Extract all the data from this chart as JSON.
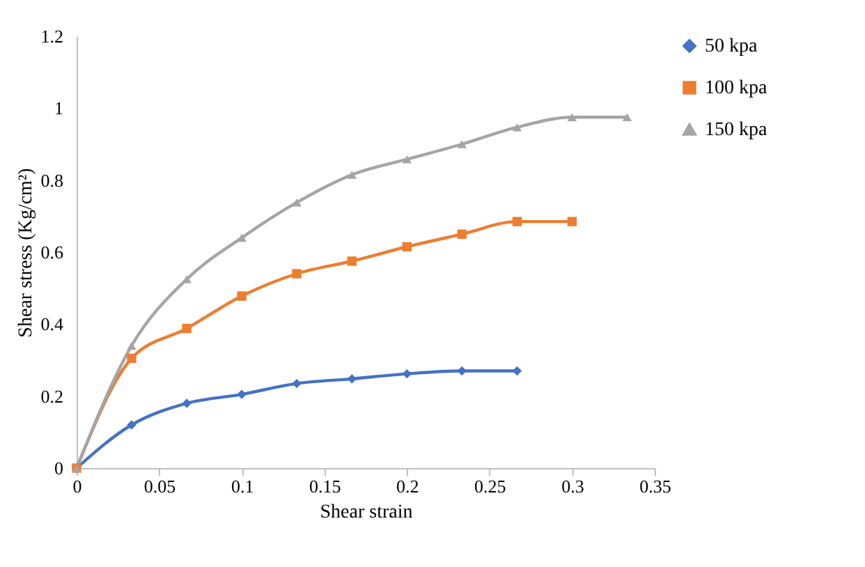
{
  "chart_data": {
    "type": "line",
    "xlabel": "Shear strain",
    "ylabel": "Shear stress (Kg/cm²)",
    "xlim": [
      0,
      0.35
    ],
    "xticks": [
      0,
      0.05,
      0.1,
      0.15,
      0.2,
      0.25,
      0.3,
      0.35
    ],
    "ylim": [
      0,
      1.2
    ],
    "yticks": [
      0,
      0.2,
      0.4,
      0.6,
      0.8,
      1,
      1.2
    ],
    "grid": false,
    "legend": "right",
    "line_style": "solid",
    "series": [
      {
        "name": "50 kpa",
        "color": "#4472c4",
        "marker": "diamond",
        "x": [
          0,
          0.0333,
          0.0667,
          0.1,
          0.1333,
          0.1667,
          0.2,
          0.2333,
          0.2667
        ],
        "values": [
          0,
          0.12,
          0.18,
          0.205,
          0.235,
          0.248,
          0.262,
          0.27,
          0.27
        ]
      },
      {
        "name": "100 kpa",
        "color": "#ed7d31",
        "marker": "square",
        "x": [
          0,
          0.0333,
          0.0667,
          0.1,
          0.1333,
          0.1667,
          0.2,
          0.2333,
          0.2667,
          0.3
        ],
        "values": [
          0,
          0.305,
          0.388,
          0.478,
          0.54,
          0.575,
          0.615,
          0.65,
          0.685,
          0.685
        ]
      },
      {
        "name": "150 kpa",
        "color": "#a5a5a5",
        "marker": "triangle",
        "x": [
          0,
          0.0333,
          0.0667,
          0.1,
          0.1333,
          0.1667,
          0.2,
          0.2333,
          0.2667,
          0.3,
          0.3333
        ],
        "values": [
          0,
          0.34,
          0.525,
          0.64,
          0.738,
          0.815,
          0.858,
          0.9,
          0.947,
          0.975,
          0.975
        ]
      }
    ]
  }
}
